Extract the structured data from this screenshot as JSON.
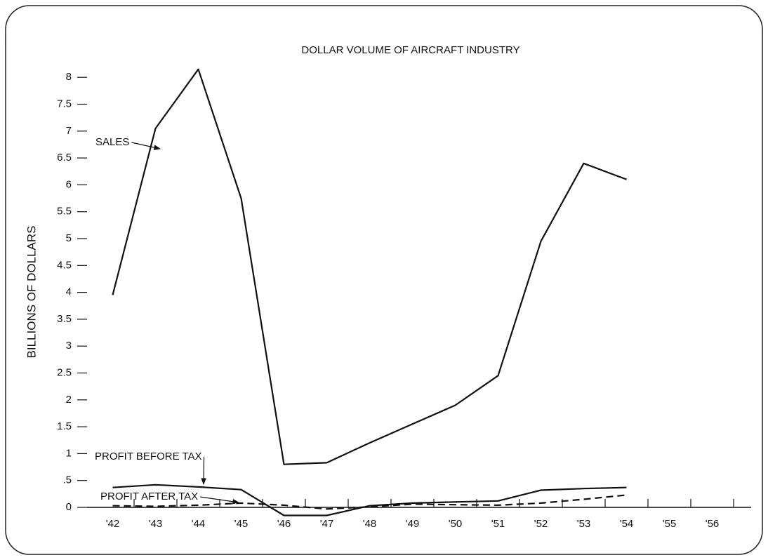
{
  "chart_data": {
    "type": "line",
    "title": "DOLLAR VOLUME OF AIRCRAFT INDUSTRY",
    "y_label": "BILLIONS OF DOLLARS",
    "categories": [
      "'42",
      "'43",
      "'44",
      "'45",
      "'46",
      "'47",
      "'48",
      "'49",
      "'50",
      "'51",
      "'52",
      "'53",
      "'54",
      "'55",
      "'56"
    ],
    "series": [
      {
        "name": "SALES",
        "color": "#111111",
        "dashed": false,
        "values": [
          3.95,
          7.05,
          8.15,
          5.75,
          0.8,
          0.83,
          1.2,
          1.55,
          1.9,
          2.45,
          4.95,
          6.4,
          6.1,
          null,
          null
        ]
      },
      {
        "name": "PROFIT BEFORE TAX",
        "color": "#111111",
        "dashed": false,
        "values": [
          0.37,
          0.42,
          0.38,
          0.33,
          -0.15,
          -0.15,
          0.03,
          0.08,
          0.1,
          0.12,
          0.32,
          0.35,
          0.37,
          null,
          null
        ]
      },
      {
        "name": "PROFIT AFTER TAX",
        "color": "#111111",
        "dashed": true,
        "values": [
          0.03,
          0.02,
          0.04,
          0.08,
          0.04,
          -0.03,
          0.01,
          0.06,
          0.05,
          0.04,
          0.08,
          0.15,
          0.23,
          null,
          null
        ]
      }
    ],
    "ylim": [
      -0.3,
      8.2
    ],
    "yticks": [
      0,
      {
        "value": 0.5,
        "label": ".5"
      },
      1,
      1.5,
      2,
      2.5,
      3,
      3.5,
      4,
      4.5,
      5,
      5.5,
      6,
      6.5,
      7,
      7.5,
      8
    ]
  }
}
